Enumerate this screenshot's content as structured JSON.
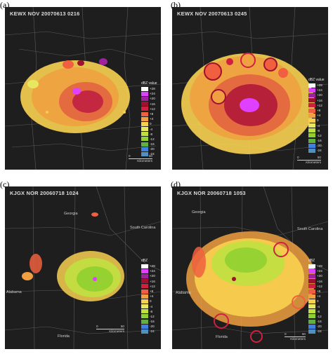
{
  "panels": [
    {
      "letter": "(a)",
      "title": "KEWX NOV 20070613 0216",
      "legend_title": "dBZ value",
      "legend_values": [
        "+28",
        "+24",
        "+20",
        "+16",
        "+12",
        "+8",
        "+4",
        "0",
        "-4",
        "-8",
        "-12",
        "-16",
        "-20",
        "-24"
      ],
      "scale_ticks": [
        "0",
        "50"
      ],
      "scale_units": "Kilometers",
      "places": []
    },
    {
      "letter": "(b)",
      "title": "KEWX NOV 20070613 0245",
      "legend_title": "dBZ value",
      "legend_values": [
        "+28",
        "+24",
        "+20",
        "+16",
        "+12",
        "+8",
        "+4",
        "0",
        "-4",
        "-8",
        "-12",
        "-16",
        "-20",
        "-24"
      ],
      "scale_ticks": [
        "0",
        "50"
      ],
      "scale_units": "Kilometers",
      "places": []
    },
    {
      "letter": "(c)",
      "title": "KJGX NOR 20060718 1024",
      "legend_title": "dBZ",
      "legend_values": [
        "+28",
        "+24",
        "+20",
        "+16",
        "+12",
        "+8",
        "+4",
        "0",
        "-4",
        "-8",
        "-12",
        "-16",
        "-20",
        "-24"
      ],
      "scale_ticks": [
        "0",
        "50"
      ],
      "scale_units": "Kilometers",
      "places": [
        "Georgia",
        "South Carolina",
        "Alabama",
        "Florida"
      ]
    },
    {
      "letter": "(d)",
      "title": "KJGX NOR 20060718 1053",
      "legend_title": "dBZ",
      "legend_values": [
        "+28",
        "+24",
        "+20",
        "+16",
        "+12",
        "+8",
        "+4",
        "0",
        "-4",
        "-8",
        "-12",
        "-16",
        "-20",
        "-24"
      ],
      "scale_ticks": [
        "0",
        "50"
      ],
      "scale_units": "Kilometers",
      "places": [
        "Georgia",
        "South Carolina",
        "Alabama",
        "Florida"
      ]
    }
  ],
  "legend_colors": [
    "#ffffff",
    "#e040ff",
    "#a020a0",
    "#a01030",
    "#d02040",
    "#f06040",
    "#f0a040",
    "#f8d050",
    "#e8e860",
    "#c0e040",
    "#90d030",
    "#60b040",
    "#4080e0",
    "#5090c0"
  ]
}
